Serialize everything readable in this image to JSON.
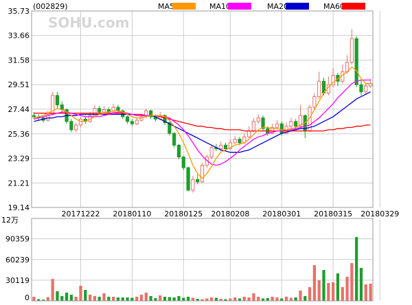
{
  "header": {
    "code": "(002829)",
    "legend": [
      {
        "label": "MA5",
        "color": "#ff9900"
      },
      {
        "label": "MA10",
        "color": "#ff00ff"
      },
      {
        "label": "MA20",
        "color": "#0000cc"
      },
      {
        "label": "MA60",
        "color": "#ff0000"
      }
    ]
  },
  "watermark": "SOHU.com",
  "colors": {
    "up": "#e8706a",
    "down": "#1e9e2c",
    "grid": "#cccccc",
    "frame": "#999999"
  },
  "chart_data": [
    {
      "type": "candlestick",
      "title": "",
      "y_ticks": [
        35.73,
        33.66,
        31.58,
        29.51,
        27.44,
        25.36,
        23.29,
        21.21,
        19.14
      ],
      "ylim": [
        19.14,
        35.73
      ],
      "x_tick_labels": [
        {
          "label": "20171222",
          "index": 10
        },
        {
          "label": "20180110",
          "index": 21
        },
        {
          "label": "20180125",
          "index": 32
        },
        {
          "label": "20180208",
          "index": 42
        },
        {
          "label": "20180301",
          "index": 53
        },
        {
          "label": "20180315",
          "index": 64
        },
        {
          "label": "20180329",
          "index": 74
        }
      ],
      "candles": [
        [
          26.9,
          26.8,
          27.2,
          26.6
        ],
        [
          26.8,
          26.7,
          27.0,
          26.5
        ],
        [
          26.7,
          26.5,
          26.9,
          26.3
        ],
        [
          26.5,
          27.0,
          27.3,
          26.4
        ],
        [
          27.0,
          28.6,
          28.9,
          26.9
        ],
        [
          28.6,
          27.8,
          28.9,
          27.5
        ],
        [
          27.8,
          27.4,
          28.1,
          27.2
        ],
        [
          27.4,
          26.4,
          27.5,
          26.2
        ],
        [
          26.4,
          25.7,
          26.6,
          25.5
        ],
        [
          25.7,
          26.1,
          26.3,
          25.5
        ],
        [
          26.1,
          26.6,
          26.8,
          25.9
        ],
        [
          26.6,
          26.4,
          26.9,
          26.2
        ],
        [
          26.4,
          26.9,
          27.2,
          26.3
        ],
        [
          26.9,
          27.5,
          27.8,
          26.8
        ],
        [
          27.5,
          27.2,
          27.7,
          27.0
        ],
        [
          27.2,
          27.4,
          27.7,
          27.0
        ],
        [
          27.4,
          27.2,
          27.6,
          27.0
        ],
        [
          27.2,
          27.6,
          27.9,
          27.1
        ],
        [
          27.6,
          27.3,
          27.8,
          27.1
        ],
        [
          27.3,
          26.8,
          27.4,
          26.6
        ],
        [
          26.8,
          26.4,
          26.9,
          26.2
        ],
        [
          26.4,
          26.2,
          26.6,
          26.0
        ],
        [
          26.2,
          26.5,
          26.7,
          26.1
        ],
        [
          26.5,
          26.8,
          27.0,
          26.4
        ],
        [
          26.8,
          27.3,
          27.5,
          26.7
        ],
        [
          27.3,
          26.8,
          27.4,
          26.6
        ],
        [
          26.8,
          26.6,
          27.0,
          26.4
        ],
        [
          26.6,
          26.9,
          27.2,
          26.5
        ],
        [
          26.9,
          26.3,
          27.0,
          26.1
        ],
        [
          26.3,
          25.4,
          26.4,
          25.2
        ],
        [
          25.4,
          24.4,
          25.5,
          24.2
        ],
        [
          24.4,
          23.4,
          24.5,
          23.2
        ],
        [
          23.4,
          22.5,
          23.5,
          22.3
        ],
        [
          22.5,
          20.6,
          22.6,
          20.5
        ],
        [
          20.6,
          21.5,
          21.8,
          20.4
        ],
        [
          21.5,
          21.3,
          21.9,
          21.1
        ],
        [
          21.3,
          22.7,
          22.9,
          21.2
        ],
        [
          22.7,
          23.4,
          23.6,
          22.5
        ],
        [
          23.4,
          24.2,
          24.4,
          23.2
        ],
        [
          24.2,
          24.1,
          24.5,
          23.9
        ],
        [
          24.1,
          24.4,
          24.7,
          23.9
        ],
        [
          24.4,
          24.1,
          24.6,
          23.9
        ],
        [
          24.1,
          24.6,
          24.9,
          24.0
        ],
        [
          24.6,
          24.9,
          25.2,
          24.5
        ],
        [
          24.9,
          24.6,
          25.1,
          24.4
        ],
        [
          24.6,
          25.1,
          25.4,
          24.5
        ],
        [
          25.1,
          25.6,
          26.0,
          25.0
        ],
        [
          25.6,
          26.4,
          26.7,
          25.5
        ],
        [
          26.4,
          26.7,
          27.0,
          26.2
        ],
        [
          26.7,
          25.8,
          26.9,
          25.6
        ],
        [
          25.8,
          25.4,
          26.0,
          25.2
        ],
        [
          25.4,
          25.9,
          26.2,
          25.3
        ],
        [
          25.9,
          26.2,
          26.5,
          25.7
        ],
        [
          26.2,
          25.4,
          26.4,
          25.2
        ],
        [
          25.4,
          26.0,
          26.3,
          25.3
        ],
        [
          26.0,
          26.4,
          26.7,
          25.8
        ],
        [
          26.4,
          26.0,
          26.6,
          25.8
        ],
        [
          26.0,
          26.9,
          27.8,
          25.9
        ],
        [
          26.9,
          25.6,
          27.0,
          25.0
        ],
        [
          25.6,
          27.6,
          27.8,
          25.5
        ],
        [
          27.6,
          28.5,
          28.8,
          27.4
        ],
        [
          28.5,
          29.8,
          30.6,
          28.3
        ],
        [
          29.8,
          28.8,
          30.1,
          28.6
        ],
        [
          28.8,
          29.5,
          30.2,
          28.6
        ],
        [
          29.5,
          30.3,
          30.9,
          29.3
        ],
        [
          30.3,
          29.8,
          30.5,
          29.4
        ],
        [
          29.8,
          30.6,
          31.2,
          29.6
        ],
        [
          30.6,
          31.4,
          32.0,
          30.4
        ],
        [
          31.4,
          33.4,
          34.2,
          31.2
        ],
        [
          33.4,
          29.5,
          33.6,
          29.3
        ],
        [
          29.5,
          28.9,
          29.9,
          28.6
        ],
        [
          28.9,
          29.4,
          29.7,
          28.7
        ],
        [
          29.4,
          29.6,
          30.0,
          29.2
        ]
      ],
      "ma5": [
        26.7,
        26.8,
        26.9,
        27.1,
        27.3,
        27.5,
        27.4,
        27.2,
        26.9,
        26.6,
        26.4,
        26.4,
        26.6,
        26.8,
        27.0,
        27.1,
        27.2,
        27.3,
        27.3,
        27.2,
        27.0,
        26.8,
        26.7,
        26.7,
        26.8,
        26.9,
        26.9,
        26.9,
        26.8,
        26.5,
        26.0,
        25.4,
        24.6,
        23.7,
        22.7,
        22.0,
        21.6,
        22.0,
        22.6,
        23.3,
        23.8,
        24.0,
        24.2,
        24.4,
        24.5,
        24.6,
        24.9,
        25.3,
        25.7,
        25.9,
        25.9,
        25.8,
        25.8,
        25.7,
        25.7,
        25.8,
        25.9,
        26.1,
        26.3,
        26.7,
        27.4,
        28.1,
        28.8,
        29.3,
        29.7,
        30.0,
        30.3,
        30.6,
        31.0,
        30.7,
        30.0,
        29.6,
        29.6
      ],
      "ma10": [
        26.6,
        26.7,
        26.8,
        26.9,
        27.0,
        27.1,
        27.2,
        27.2,
        27.1,
        27.0,
        26.9,
        26.8,
        26.8,
        26.8,
        26.8,
        26.9,
        27.0,
        27.1,
        27.2,
        27.2,
        27.1,
        27.0,
        26.9,
        26.9,
        26.9,
        26.9,
        26.9,
        26.9,
        26.8,
        26.7,
        26.4,
        26.1,
        25.7,
        25.2,
        24.6,
        24.0,
        23.5,
        23.1,
        22.8,
        22.7,
        22.8,
        23.0,
        23.3,
        23.6,
        24.0,
        24.3,
        24.6,
        24.9,
        25.1,
        25.2,
        25.4,
        25.5,
        25.6,
        25.6,
        25.7,
        25.7,
        25.8,
        25.9,
        26.0,
        26.1,
        26.4,
        26.7,
        27.1,
        27.5,
        27.9,
        28.4,
        28.8,
        29.2,
        29.6,
        29.8,
        29.9,
        29.9,
        29.9
      ],
      "ma20": [
        26.4,
        26.5,
        26.6,
        26.7,
        26.7,
        26.8,
        26.8,
        26.9,
        26.9,
        26.9,
        27.0,
        27.0,
        27.0,
        27.0,
        27.0,
        27.0,
        27.0,
        27.0,
        27.0,
        27.0,
        27.0,
        27.0,
        26.9,
        26.9,
        26.9,
        26.9,
        26.8,
        26.6,
        26.4,
        26.2,
        26.0,
        25.8,
        25.6,
        25.4,
        25.2,
        25.0,
        24.8,
        24.6,
        24.4,
        24.2,
        24.0,
        23.9,
        23.8,
        23.8,
        23.8,
        23.9,
        24.0,
        24.2,
        24.4,
        24.6,
        24.8,
        25.0,
        25.2,
        25.4,
        25.5,
        25.6,
        25.7,
        25.8,
        25.8,
        25.9,
        26.0,
        26.2,
        26.4,
        26.6,
        26.8,
        27.1,
        27.4,
        27.7,
        28.0,
        28.3,
        28.5,
        28.7,
        28.9
      ],
      "ma60": [
        27.1,
        27.1,
        27.1,
        27.1,
        27.1,
        27.1,
        27.1,
        27.1,
        27.1,
        27.1,
        27.1,
        27.1,
        27.1,
        27.1,
        27.1,
        27.1,
        27.1,
        27.1,
        27.1,
        27.1,
        27.0,
        27.0,
        27.0,
        27.0,
        26.9,
        26.9,
        26.9,
        26.8,
        26.7,
        26.6,
        26.5,
        26.4,
        26.3,
        26.2,
        26.1,
        26.0,
        26.0,
        25.9,
        25.9,
        25.8,
        25.8,
        25.7,
        25.7,
        25.7,
        25.7,
        25.6,
        25.6,
        25.6,
        25.6,
        25.6,
        25.6,
        25.6,
        25.6,
        25.6,
        25.6,
        25.6,
        25.6,
        25.6,
        25.6,
        25.6,
        25.6,
        25.6,
        25.6,
        25.7,
        25.7,
        25.8,
        25.8,
        25.9,
        25.9,
        26.0,
        26.0,
        26.1,
        26.1
      ]
    },
    {
      "type": "bar",
      "title": "",
      "unit_label": "12万",
      "y_ticks": [
        90359,
        60239,
        30119,
        0
      ],
      "ylim": [
        0,
        120000
      ],
      "volume": [
        6000,
        2500,
        1800,
        5500,
        32000,
        14000,
        7000,
        12000,
        9000,
        6000,
        22000,
        16000,
        9000,
        7000,
        6000,
        11000,
        6000,
        6000,
        5000,
        5000,
        5000,
        4500,
        6000,
        9000,
        12000,
        7000,
        4000,
        8000,
        6000,
        5500,
        5000,
        7000,
        4500,
        6000,
        4500,
        3000,
        2500,
        3500,
        5000,
        4500,
        3000,
        2500,
        3500,
        5000,
        3500,
        6000,
        5000,
        11000,
        6000,
        3500,
        4000,
        6000,
        5000,
        3500,
        6000,
        4500,
        5000,
        15000,
        7000,
        20000,
        52000,
        30000,
        45000,
        26000,
        27000,
        40000,
        20000,
        35000,
        55000,
        93000,
        48000,
        24000,
        25000
      ],
      "volume_up": [
        true,
        false,
        false,
        true,
        true,
        false,
        false,
        false,
        false,
        true,
        true,
        false,
        true,
        true,
        false,
        true,
        false,
        true,
        false,
        false,
        false,
        false,
        true,
        true,
        true,
        false,
        false,
        true,
        false,
        false,
        false,
        false,
        false,
        false,
        true,
        false,
        true,
        true,
        true,
        false,
        true,
        false,
        true,
        true,
        false,
        true,
        true,
        true,
        true,
        false,
        false,
        true,
        true,
        false,
        true,
        true,
        false,
        true,
        false,
        true,
        true,
        true,
        false,
        true,
        true,
        false,
        true,
        true,
        true,
        false,
        false,
        true,
        true
      ]
    }
  ]
}
